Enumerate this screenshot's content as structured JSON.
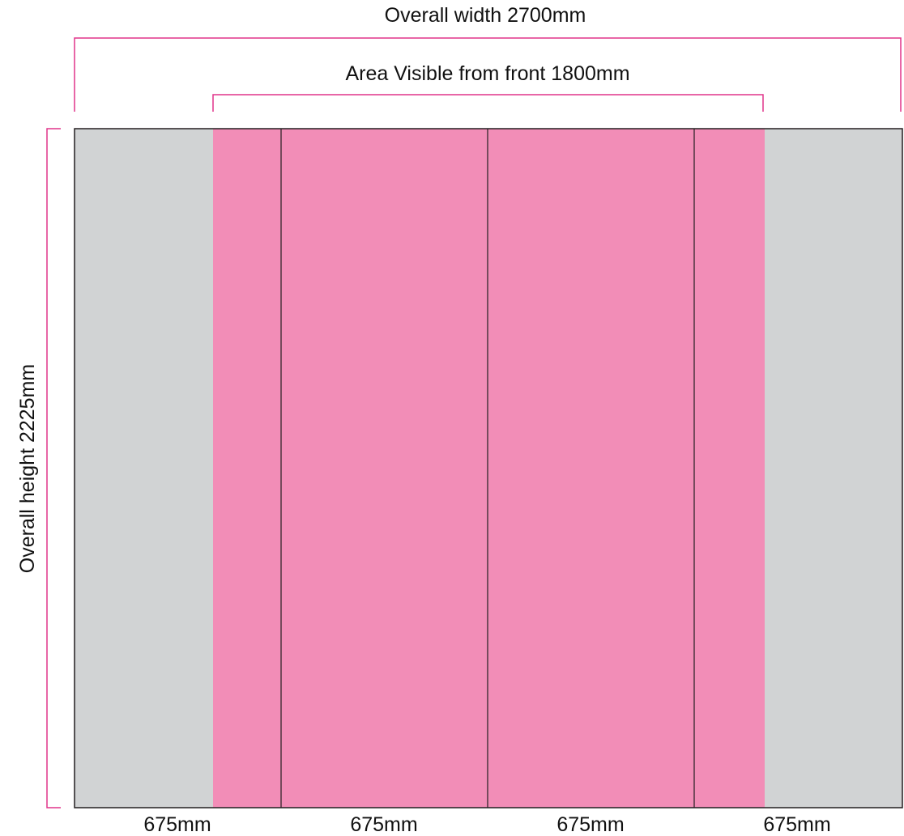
{
  "labels": {
    "overall_width": "Overall width 2700mm",
    "visible_area": "Area Visible from front 1800mm",
    "overall_height": "Overall height 2225mm"
  },
  "panels": [
    {
      "label": "675mm"
    },
    {
      "label": "675mm"
    },
    {
      "label": "675mm"
    },
    {
      "label": "675mm"
    }
  ],
  "colors": {
    "visible_area": "#F28DB7",
    "hidden_area": "#D1D3D4",
    "dimension_line": "#E0338A",
    "panel_outline": "#231F20"
  }
}
